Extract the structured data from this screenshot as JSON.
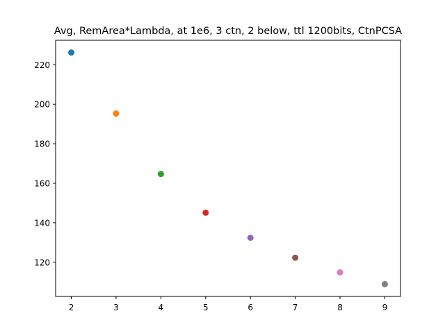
{
  "chart_data": {
    "type": "scatter",
    "title": "Avg, RemArea*Lambda, at 1e6, 3 ctn, 2 below, ttl 1200bits, CtnPCSA",
    "xlabel": "",
    "ylabel": "",
    "xlim": [
      1.65,
      9.35
    ],
    "ylim": [
      102.7,
      232.4
    ],
    "x_ticks": [
      2,
      3,
      4,
      5,
      6,
      7,
      8,
      9
    ],
    "y_ticks": [
      120,
      140,
      160,
      180,
      200,
      220
    ],
    "grid": false,
    "points": [
      {
        "x": 2,
        "y": 226.2,
        "color": "#1f77b4"
      },
      {
        "x": 3,
        "y": 195.3,
        "color": "#ff7f0e"
      },
      {
        "x": 4,
        "y": 164.7,
        "color": "#2ca02c"
      },
      {
        "x": 5,
        "y": 145.1,
        "color": "#d62728"
      },
      {
        "x": 6,
        "y": 132.4,
        "color": "#9467bd"
      },
      {
        "x": 7,
        "y": 122.3,
        "color": "#8c564b"
      },
      {
        "x": 8,
        "y": 114.9,
        "color": "#e377c2"
      },
      {
        "x": 9,
        "y": 108.9,
        "color": "#7f7f7f"
      }
    ]
  }
}
